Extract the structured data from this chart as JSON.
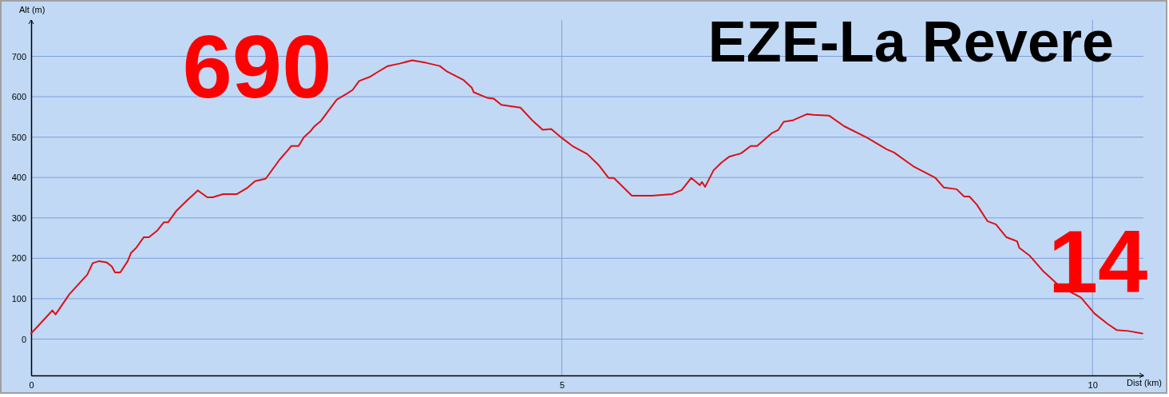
{
  "chart_data": {
    "type": "line",
    "title": "EZE-La Revere",
    "xlabel": "Dist (km)",
    "ylabel": "Alt (m)",
    "annotations": [
      "690",
      "14"
    ],
    "xlim": [
      0,
      10.48
    ],
    "xticks": [
      0,
      5,
      10
    ],
    "ylim": [
      -90,
      790
    ],
    "yticks": [
      0,
      100,
      200,
      300,
      400,
      500,
      600,
      700
    ],
    "grid": true,
    "line_style": "solid",
    "marker": "none",
    "series": [
      {
        "color": "#dd0f14",
        "x": [
          0,
          0.12,
          0.2,
          0.23,
          0.36,
          0.53,
          0.58,
          0.64,
          0.71,
          0.76,
          0.79,
          0.84,
          0.91,
          0.94,
          0.99,
          1.06,
          1.11,
          1.19,
          1.25,
          1.29,
          1.37,
          1.46,
          1.57,
          1.66,
          1.71,
          1.81,
          1.89,
          1.94,
          2.04,
          2.11,
          2.21,
          2.34,
          2.42,
          2.45,
          2.52,
          2.57,
          2.63,
          2.67,
          2.73,
          2.88,
          2.97,
          3.03,
          3.09,
          3.19,
          3.27,
          3.36,
          3.47,
          3.59,
          3.72,
          3.85,
          3.92,
          4.07,
          4.15,
          4.17,
          4.3,
          4.36,
          4.43,
          4.61,
          4.72,
          4.82,
          4.9,
          5.0,
          5.1,
          5.24,
          5.35,
          5.44,
          5.49,
          5.66,
          5.85,
          6.04,
          6.13,
          6.22,
          6.3,
          6.32,
          6.35,
          6.43,
          6.5,
          6.58,
          6.69,
          6.78,
          6.84,
          6.98,
          7.04,
          7.09,
          7.18,
          7.31,
          7.37,
          7.52,
          7.66,
          7.88,
          8.06,
          8.13,
          8.31,
          8.52,
          8.6,
          8.72,
          8.79,
          8.84,
          8.91,
          9.01,
          9.09,
          9.19,
          9.29,
          9.31,
          9.41,
          9.54,
          9.69,
          9.89,
          10.02,
          10.14,
          10.23,
          10.34,
          10.47
        ],
        "values": [
          14,
          48,
          71,
          61,
          111,
          160,
          188,
          193,
          190,
          180,
          165,
          165,
          193,
          213,
          226,
          252,
          252,
          269,
          289,
          289,
          318,
          341,
          368,
          351,
          351,
          359,
          359,
          359,
          375,
          391,
          397,
          444,
          468,
          478,
          478,
          500,
          514,
          527,
          540,
          593,
          607,
          617,
          639,
          649,
          662,
          676,
          682,
          690,
          684,
          676,
          662,
          642,
          623,
          611,
          597,
          595,
          580,
          573,
          542,
          518,
          520,
          498,
          478,
          458,
          430,
          399,
          399,
          355,
          355,
          359,
          369,
          399,
          381,
          389,
          377,
          418,
          436,
          452,
          460,
          478,
          478,
          510,
          518,
          538,
          542,
          557,
          555,
          553,
          527,
          498,
          470,
          462,
          428,
          399,
          375,
          371,
          353,
          353,
          333,
          292,
          284,
          252,
          242,
          226,
          206,
          167,
          131,
          103,
          63,
          38,
          22,
          20,
          14
        ]
      }
    ]
  }
}
